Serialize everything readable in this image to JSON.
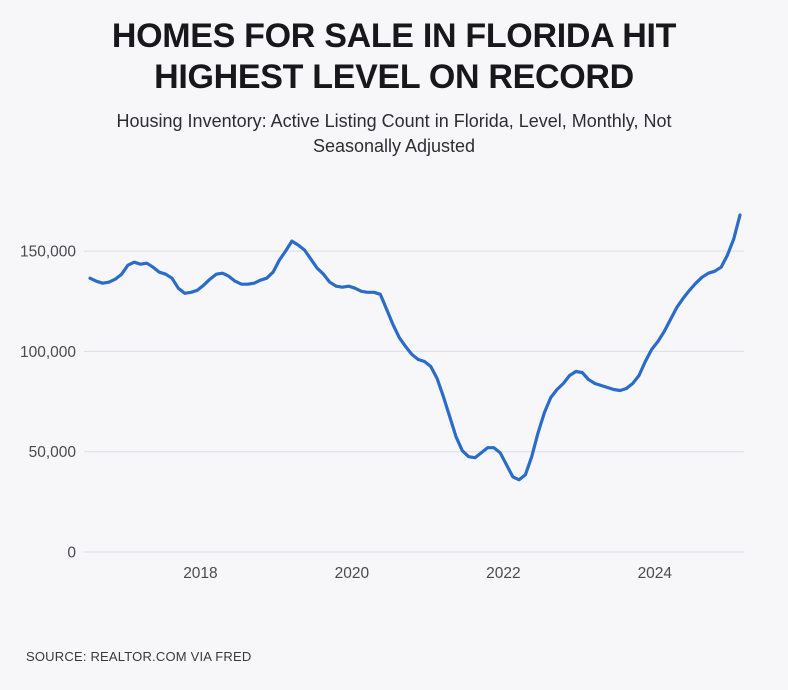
{
  "page": {
    "background": "#f7f7f9"
  },
  "header": {
    "title_line1": "HOMES FOR SALE IN FLORIDA HIT",
    "title_line2": "HIGHEST LEVEL ON RECORD",
    "subtitle": "Housing Inventory: Active Listing Count in Florida, Level, Monthly, Not Seasonally Adjusted"
  },
  "footer": {
    "source": "SOURCE: REALTOR.COM VIA FRED"
  },
  "chart_data": {
    "type": "line",
    "title": "HOMES FOR SALE IN FLORIDA HIT HIGHEST LEVEL ON RECORD",
    "subtitle": "Housing Inventory: Active Listing Count in Florida, Level, Monthly, Not Seasonally Adjusted",
    "series_name": "Active Listing Count in Florida",
    "xlabel": "",
    "ylabel": "",
    "grid": true,
    "legend": "none",
    "line_color": "#2b6cc8",
    "grid_color": "#dddde2",
    "tick_color": "#4a4a4f",
    "ylim": [
      0,
      175000
    ],
    "yticks": [
      0,
      50000,
      100000,
      150000
    ],
    "ytick_labels": [
      "0",
      "50,000",
      "100,000",
      "150,000"
    ],
    "xticks": [
      2018,
      2020,
      2022,
      2024
    ],
    "xtick_labels": [
      "2018",
      "2020",
      "2022",
      "2024"
    ],
    "x": [
      "2016-07",
      "2016-08",
      "2016-09",
      "2016-10",
      "2016-11",
      "2016-12",
      "2017-01",
      "2017-02",
      "2017-03",
      "2017-04",
      "2017-05",
      "2017-06",
      "2017-07",
      "2017-08",
      "2017-09",
      "2017-10",
      "2017-11",
      "2017-12",
      "2018-01",
      "2018-02",
      "2018-03",
      "2018-04",
      "2018-05",
      "2018-06",
      "2018-07",
      "2018-08",
      "2018-09",
      "2018-10",
      "2018-11",
      "2018-12",
      "2019-01",
      "2019-02",
      "2019-03",
      "2019-04",
      "2019-05",
      "2019-06",
      "2019-07",
      "2019-08",
      "2019-09",
      "2019-10",
      "2019-11",
      "2019-12",
      "2020-01",
      "2020-02",
      "2020-03",
      "2020-04",
      "2020-05",
      "2020-06",
      "2020-07",
      "2020-08",
      "2020-09",
      "2020-10",
      "2020-11",
      "2020-12",
      "2021-01",
      "2021-02",
      "2021-03",
      "2021-04",
      "2021-05",
      "2021-06",
      "2021-07",
      "2021-08",
      "2021-09",
      "2021-10",
      "2021-11",
      "2021-12",
      "2022-01",
      "2022-02",
      "2022-03",
      "2022-04",
      "2022-05",
      "2022-06",
      "2022-07",
      "2022-08",
      "2022-09",
      "2022-10",
      "2022-11",
      "2022-12",
      "2023-01",
      "2023-02",
      "2023-03",
      "2023-04",
      "2023-05",
      "2023-06",
      "2023-07",
      "2023-08",
      "2023-09",
      "2023-10",
      "2023-11",
      "2023-12",
      "2024-01",
      "2024-02",
      "2024-03",
      "2024-04",
      "2024-05",
      "2024-06",
      "2024-07",
      "2024-08",
      "2024-09",
      "2024-10",
      "2024-11",
      "2024-12",
      "2025-01",
      "2025-02"
    ],
    "values": [
      136500,
      135000,
      134000,
      134500,
      136000,
      138500,
      143000,
      144500,
      143500,
      144000,
      142000,
      139500,
      138500,
      136500,
      131500,
      129000,
      129500,
      130500,
      133000,
      136000,
      138500,
      139000,
      137500,
      135000,
      133500,
      133500,
      134000,
      135500,
      136500,
      139500,
      145500,
      150000,
      155000,
      153000,
      150500,
      146000,
      141500,
      138500,
      134500,
      132500,
      132000,
      132500,
      131500,
      130000,
      129500,
      129500,
      128500,
      121000,
      113500,
      107000,
      102500,
      98500,
      96000,
      95000,
      92500,
      86500,
      77500,
      67500,
      57500,
      50500,
      47500,
      47000,
      49500,
      52000,
      52000,
      49500,
      43500,
      37500,
      36000,
      38500,
      47500,
      59500,
      69500,
      77000,
      81000,
      84000,
      88000,
      90000,
      89500,
      86000,
      84000,
      83000,
      82000,
      81000,
      80500,
      81500,
      84000,
      88000,
      95000,
      101000,
      105000,
      110000,
      116000,
      122000,
      126500,
      130500,
      134000,
      137000,
      139000,
      140000,
      142000,
      148000,
      156000,
      168000
    ]
  }
}
